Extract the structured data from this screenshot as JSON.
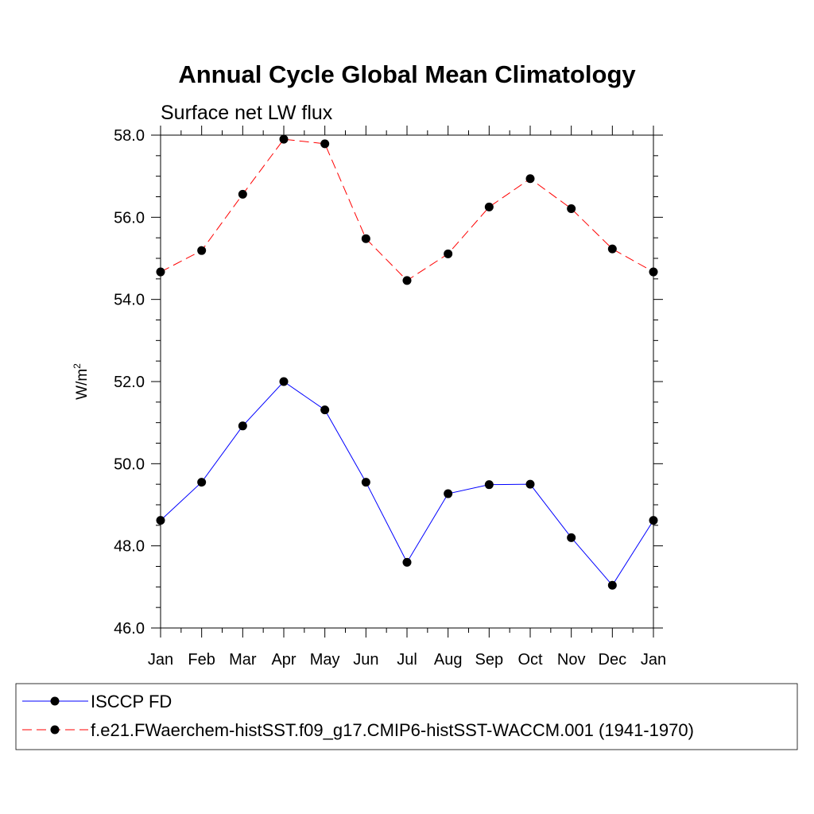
{
  "chart_data": {
    "type": "line",
    "title": "Annual Cycle Global Mean Climatology",
    "subtitle": "Surface net LW flux",
    "ylabel": "W/m",
    "ylabel_sup": "2",
    "xlabel": "",
    "ylim": [
      46.0,
      58.0
    ],
    "yticks": [
      "46.0",
      "48.0",
      "50.0",
      "52.0",
      "54.0",
      "56.0",
      "58.0"
    ],
    "categories": [
      "Jan",
      "Feb",
      "Mar",
      "Apr",
      "May",
      "Jun",
      "Jul",
      "Aug",
      "Sep",
      "Oct",
      "Nov",
      "Dec",
      "Jan"
    ],
    "grid": false,
    "legend_position": "bottom",
    "series": [
      {
        "name": "ISCCP FD",
        "color": "#0000ff",
        "dash": "solid",
        "marker": "filled-circle",
        "values": [
          48.62,
          49.55,
          50.92,
          52.0,
          51.31,
          49.55,
          47.6,
          49.27,
          49.49,
          49.5,
          48.2,
          47.04,
          48.62
        ]
      },
      {
        "name": "f.e21.FWaerchem-histSST.f09_g17.CMIP6-histSST-WACCM.001 (1941-1970)",
        "color": "#ff0000",
        "dash": "dashed",
        "marker": "filled-circle",
        "values": [
          54.67,
          55.19,
          56.56,
          57.9,
          57.79,
          55.48,
          54.46,
          55.11,
          56.25,
          56.94,
          56.21,
          55.23,
          54.67
        ]
      }
    ]
  }
}
